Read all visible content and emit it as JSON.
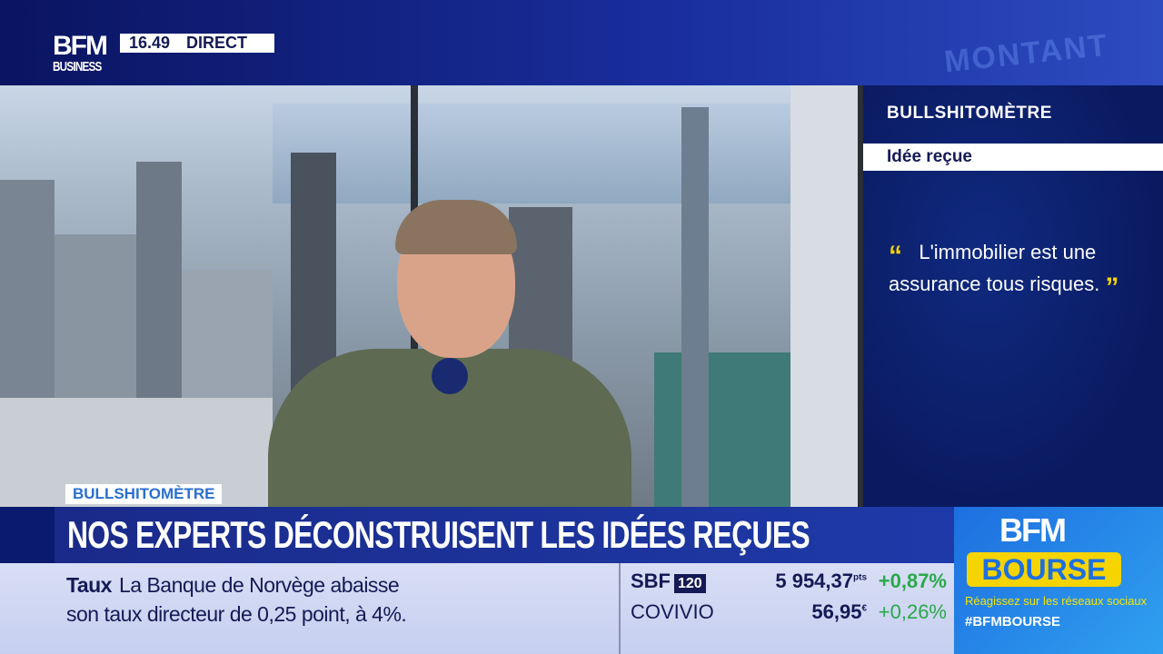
{
  "header": {
    "logo_top": "BFM",
    "logo_bottom": "BUSINESS",
    "time": "16.49",
    "live_label": "DIRECT",
    "background_word": "MONTANT"
  },
  "side_panel": {
    "title": "BULLSHITOMÈTRE",
    "subtitle": "Idée reçue",
    "quote_open": "“",
    "quote": "L'immobilier est une assurance tous risques.",
    "quote_close": "”"
  },
  "lower_third": {
    "tag": "BULLSHITOMÈTRE",
    "headline": "NOS EXPERTS DÉCONSTRUISENT LES IDÉES REÇUES"
  },
  "ticker": {
    "category": "Taux",
    "line1": "La Banque de Norvège abaisse",
    "line2": "son taux directeur de 0,25 point, à 4%."
  },
  "markets": [
    {
      "name": "SBF",
      "badge": "120",
      "value": "5 954,37",
      "unit": "pts",
      "change": "+0,87%"
    },
    {
      "name": "COVIVIO",
      "value": "56,95",
      "unit": "€",
      "change": "+0,26%"
    }
  ],
  "bourse": {
    "logo_top": "BFM",
    "logo_bottom": "BOURSE",
    "cta": "Réagissez sur les réseaux sociaux",
    "hashtag": "#BFMBOURSE"
  },
  "colors": {
    "navy": "#141a55",
    "accent_yellow": "#f5d400",
    "positive": "#2aa84a",
    "bourse_blue": "#1e6fe0"
  }
}
